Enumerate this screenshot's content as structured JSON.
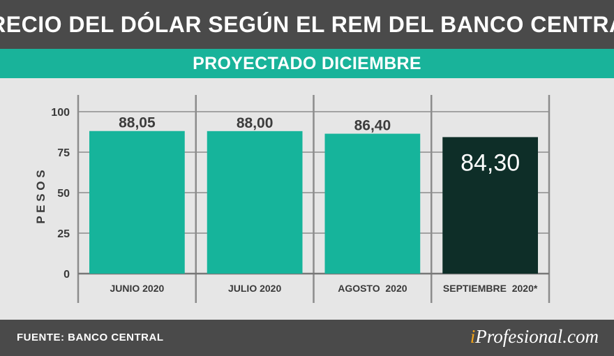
{
  "title": "PRECIO DEL DÓLAR SEGÚN EL REM DEL BANCO CENTRAL",
  "subtitle": "PROYECTADO DICIEMBRE",
  "chart_data": {
    "type": "bar",
    "categories": [
      "JUNIO 2020",
      "JULIO 2020",
      "AGOSTO  2020",
      "SEPTIEMBRE  2020*"
    ],
    "values": [
      88.05,
      88.0,
      86.4,
      84.3
    ],
    "value_labels": [
      "88,05",
      "88,00",
      "86,40",
      "84,30"
    ],
    "ylabel": "P E S O S",
    "ylim": [
      0,
      100
    ],
    "yticks": [
      0,
      25,
      50,
      75,
      100
    ],
    "grid": true,
    "colors": {
      "bar": "#16b49b",
      "highlight_bar": "#0e2e28",
      "grid": "#8c8c8c",
      "background": "#e6e6e6"
    },
    "highlight_index": 3
  },
  "footer": {
    "source": "FUENTE: BANCO CENTRAL",
    "brand_prefix": "i",
    "brand_rest": "Profesional.com"
  }
}
